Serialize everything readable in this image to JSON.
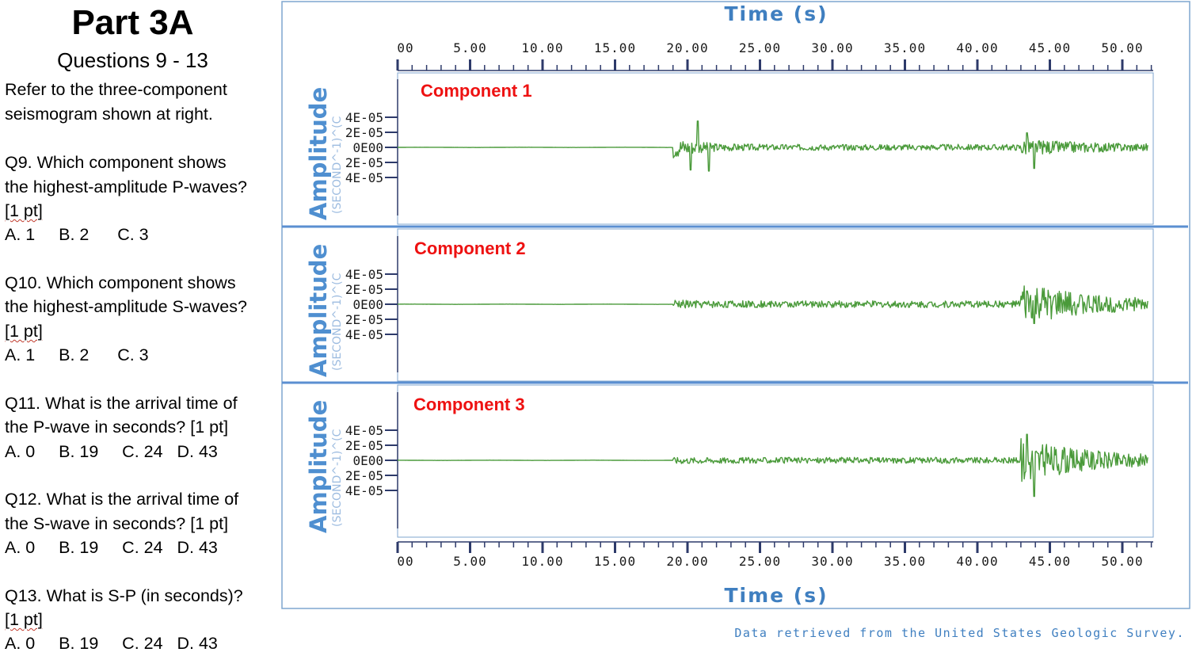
{
  "header": {
    "title": "Part 3A",
    "subtitle": "Questions 9 - 13",
    "intro": [
      "Refer to the three-component",
      "seismogram shown at right."
    ]
  },
  "questions": [
    {
      "lines": [
        "Q9. Which component shows",
        "the highest-amplitude P-waves?"
      ],
      "points": "[1 pt]",
      "choices": "A. 1     B. 2      C. 3"
    },
    {
      "lines": [
        "Q10. Which component shows",
        "the highest-amplitude S-waves?"
      ],
      "points": "[1 pt]",
      "choices": "A. 1     B. 2      C. 3"
    },
    {
      "lines": [
        "Q11. What is the arrival time of",
        "the P-wave in seconds? [1 pt]"
      ],
      "points": "",
      "choices": "A. 0     B. 19     C. 24   D. 43"
    },
    {
      "lines": [
        "Q12. What is the arrival time of",
        "the S-wave in seconds? [1 pt]"
      ],
      "points": "",
      "choices": "A. 0     B. 19     C. 24   D. 43"
    },
    {
      "lines": [
        "Q13. What is S-P (in seconds)?"
      ],
      "points": "[1 pt]",
      "choices": "A. 0     B. 19     C. 24   D. 43"
    }
  ],
  "chart_data": {
    "type": "line",
    "xlabel": "Time (s)",
    "ylabel": "Amplitude",
    "ylabel_sub": "(SECOND^-1)^(C",
    "xlim": [
      0,
      52
    ],
    "x_ticks": [
      0,
      5,
      10,
      15,
      20,
      25,
      30,
      35,
      40,
      45,
      50
    ],
    "x_tick_labels": [
      "00",
      "5.00",
      "10.00",
      "15.00",
      "20.00",
      "25.00",
      "30.00",
      "35.00",
      "40.00",
      "45.00",
      "50.00"
    ],
    "ylim": [
      -5e-05,
      5e-05
    ],
    "y_ticks": [
      4e-05,
      2e-05,
      0,
      -2e-05,
      -4e-05
    ],
    "y_tick_labels": [
      "4E-05",
      "2E-05",
      "0E00",
      "2E-05",
      "4E-05"
    ],
    "p_arrival_s": 19,
    "s_arrival_s": 43,
    "panels": [
      {
        "name": "Component 1",
        "noise": 3e-07,
        "p_amp": 1.5e-05,
        "s_amp": 1.1e-05,
        "coda_amp": 4e-06,
        "peak": 3.5e-05
      },
      {
        "name": "Component 2",
        "noise": 3e-07,
        "p_amp": 6.5e-06,
        "s_amp": 2.8e-05,
        "coda_amp": 4.5e-06,
        "peak": 3.2e-05
      },
      {
        "name": "Component 3",
        "noise": 3e-07,
        "p_amp": 4.5e-06,
        "s_amp": 3e-05,
        "coda_amp": 4e-06,
        "peak": 4.8e-05
      }
    ],
    "grid": false,
    "line_color": "#4a9a3a",
    "axis_color": "#2d3a6a",
    "frame_color": "#7fa6cf",
    "separator_color": "#5b8fd1"
  },
  "credit": "Data retrieved from the United States Geologic Survey."
}
